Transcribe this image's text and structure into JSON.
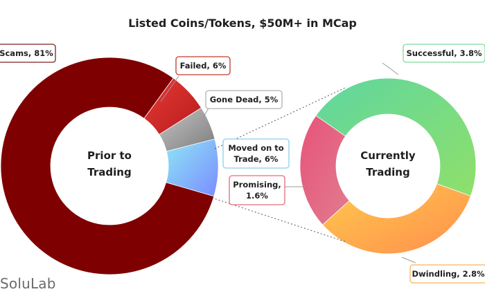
{
  "title": "Listed Coins/Tokens, $50M+ in MCap",
  "brand": "SoluLab",
  "chart_data": [
    {
      "type": "pie",
      "center_label": [
        "Prior to",
        "Trading"
      ],
      "slices": [
        {
          "label": "Scams, 81%",
          "value": 81,
          "color": "#7f0000"
        },
        {
          "label": "Failed, 6%",
          "value": 6,
          "color": "#d32f2f",
          "border": "#c0392b"
        },
        {
          "label": "Gone Dead, 5%",
          "value": 5,
          "color": "#9a9a9a",
          "border": "#b0b0b0"
        },
        {
          "label": "Moved on to Trade, 6%",
          "value": 6,
          "color": "#7fb3ff",
          "border": "#8ccfe8"
        }
      ]
    },
    {
      "type": "pie",
      "center_label": [
        "Currently",
        "Trading"
      ],
      "slices": [
        {
          "label": "Successful, 3.8%",
          "value": 3.8,
          "color": "#79dd8a",
          "border": "#7ed99a"
        },
        {
          "label": "Dwindling, 2.8%",
          "value": 2.8,
          "color": "#ffa64d",
          "border": "#f7b55a"
        },
        {
          "label": "Promising, 1.6%",
          "value": 1.6,
          "color": "#e0607e",
          "border": "#e06b7b"
        }
      ]
    }
  ]
}
